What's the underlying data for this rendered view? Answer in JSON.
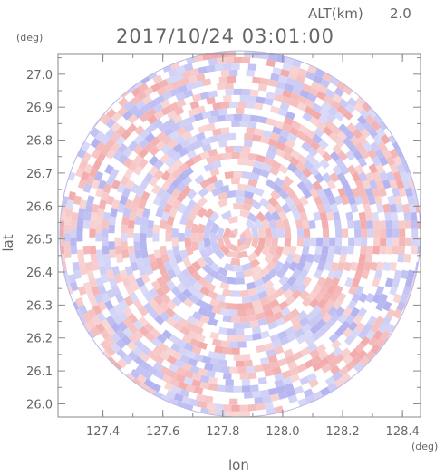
{
  "chart_data": {
    "type": "heatmap",
    "title": "2017/10/24 03:01:00",
    "altitude_label": "ALT(km)",
    "altitude_value": "2.0",
    "xlabel": "lon",
    "ylabel": "lat",
    "x_unit": "(deg)",
    "y_unit": "(deg)",
    "xlim": [
      127.25,
      128.46
    ],
    "ylim": [
      25.96,
      27.06
    ],
    "x_ticks": [
      127.4,
      127.6,
      127.8,
      128.0,
      128.2,
      128.4
    ],
    "x_tick_labels": [
      "127.4",
      "127.6",
      "127.8",
      "128.0",
      "128.2",
      "128.4"
    ],
    "y_ticks": [
      26.0,
      26.1,
      26.2,
      26.3,
      26.4,
      26.5,
      26.6,
      26.7,
      26.8,
      26.9,
      27.0
    ],
    "y_tick_labels": [
      "26.0",
      "26.1",
      "26.2",
      "26.3",
      "26.4",
      "26.5",
      "26.6",
      "26.7",
      "26.8",
      "26.9",
      "27.0"
    ],
    "radar_center": [
      127.85,
      26.505
    ],
    "radar_coverage_radius_deg_lon": 0.6,
    "grid": false,
    "colors": {
      "positive": "#f2a8a8",
      "negative": "#b0b0f0",
      "frame": "#888888"
    }
  }
}
